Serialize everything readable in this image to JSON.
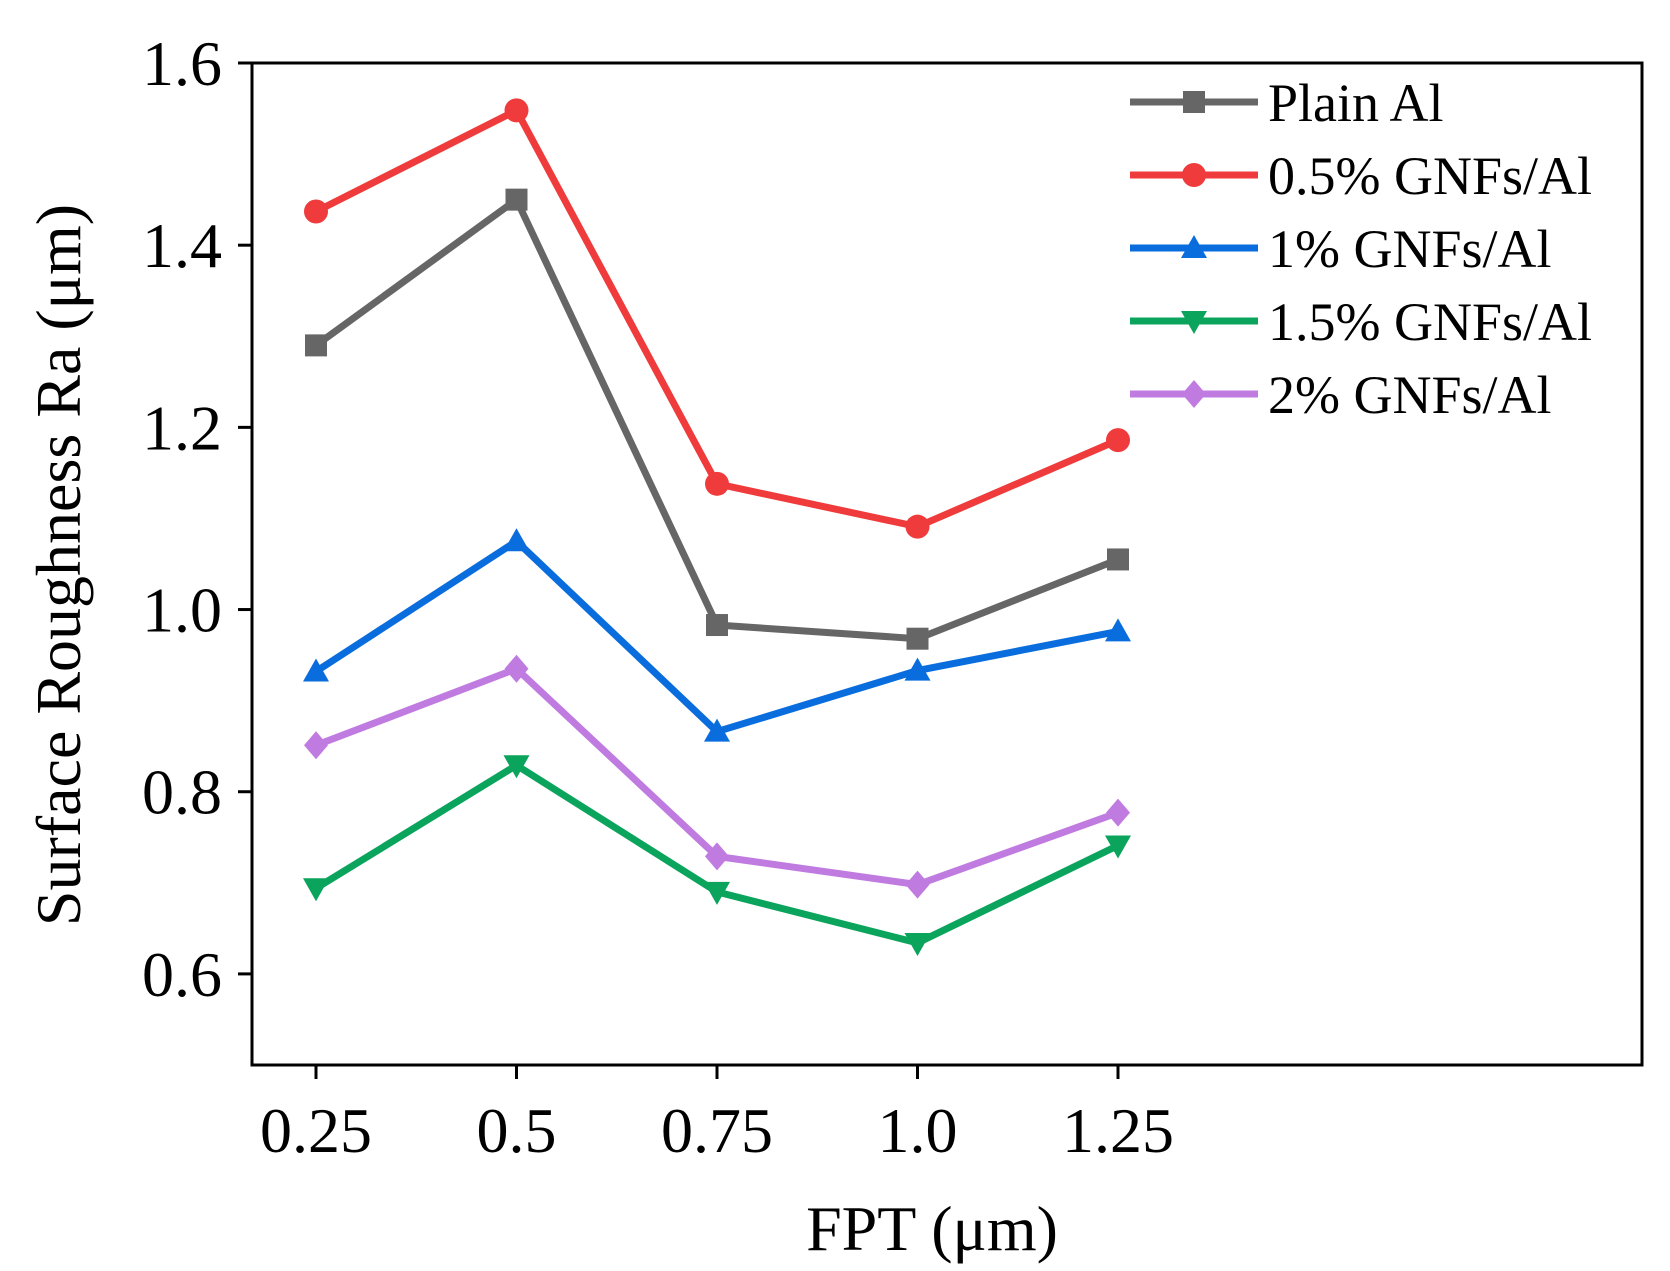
{
  "chart_data": {
    "type": "line",
    "title": "",
    "xlabel": "FPT (μm)",
    "ylabel": "Surface Roughness Ra (μm)",
    "x": [
      0.25,
      0.5,
      0.75,
      1.0,
      1.25
    ],
    "x_tick_labels": [
      "0.25",
      "0.5",
      "0.75",
      "1.0",
      "1.25"
    ],
    "y_ticks": [
      0.6,
      0.8,
      1.0,
      1.2,
      1.4,
      1.6
    ],
    "y_tick_labels": [
      "0.6",
      "0.8",
      "1.0",
      "1.2",
      "1.4",
      "1.6"
    ],
    "ylim": [
      0.5,
      1.6
    ],
    "grid": false,
    "legend_position": "top-right",
    "series": [
      {
        "name": "Plain Al",
        "marker": "square",
        "color": "#666666",
        "values": [
          1.29,
          1.45,
          0.983,
          0.968,
          1.055
        ]
      },
      {
        "name": "0.5% GNFs/Al",
        "marker": "circle",
        "color": "#ef3b3b",
        "values": [
          1.437,
          1.548,
          1.138,
          1.091,
          1.186
        ]
      },
      {
        "name": "1% GNFs/Al",
        "marker": "triangle-up",
        "color": "#0a6ddd",
        "values": [
          0.932,
          1.075,
          0.866,
          0.933,
          0.976
        ]
      },
      {
        "name": "1.5% GNFs/Al",
        "marker": "triangle-down",
        "color": "#0aa45c",
        "values": [
          0.694,
          0.829,
          0.69,
          0.634,
          0.741
        ]
      },
      {
        "name": "2% GNFs/Al",
        "marker": "diamond",
        "color": "#c07be0",
        "values": [
          0.851,
          0.935,
          0.729,
          0.698,
          0.777
        ]
      }
    ]
  }
}
